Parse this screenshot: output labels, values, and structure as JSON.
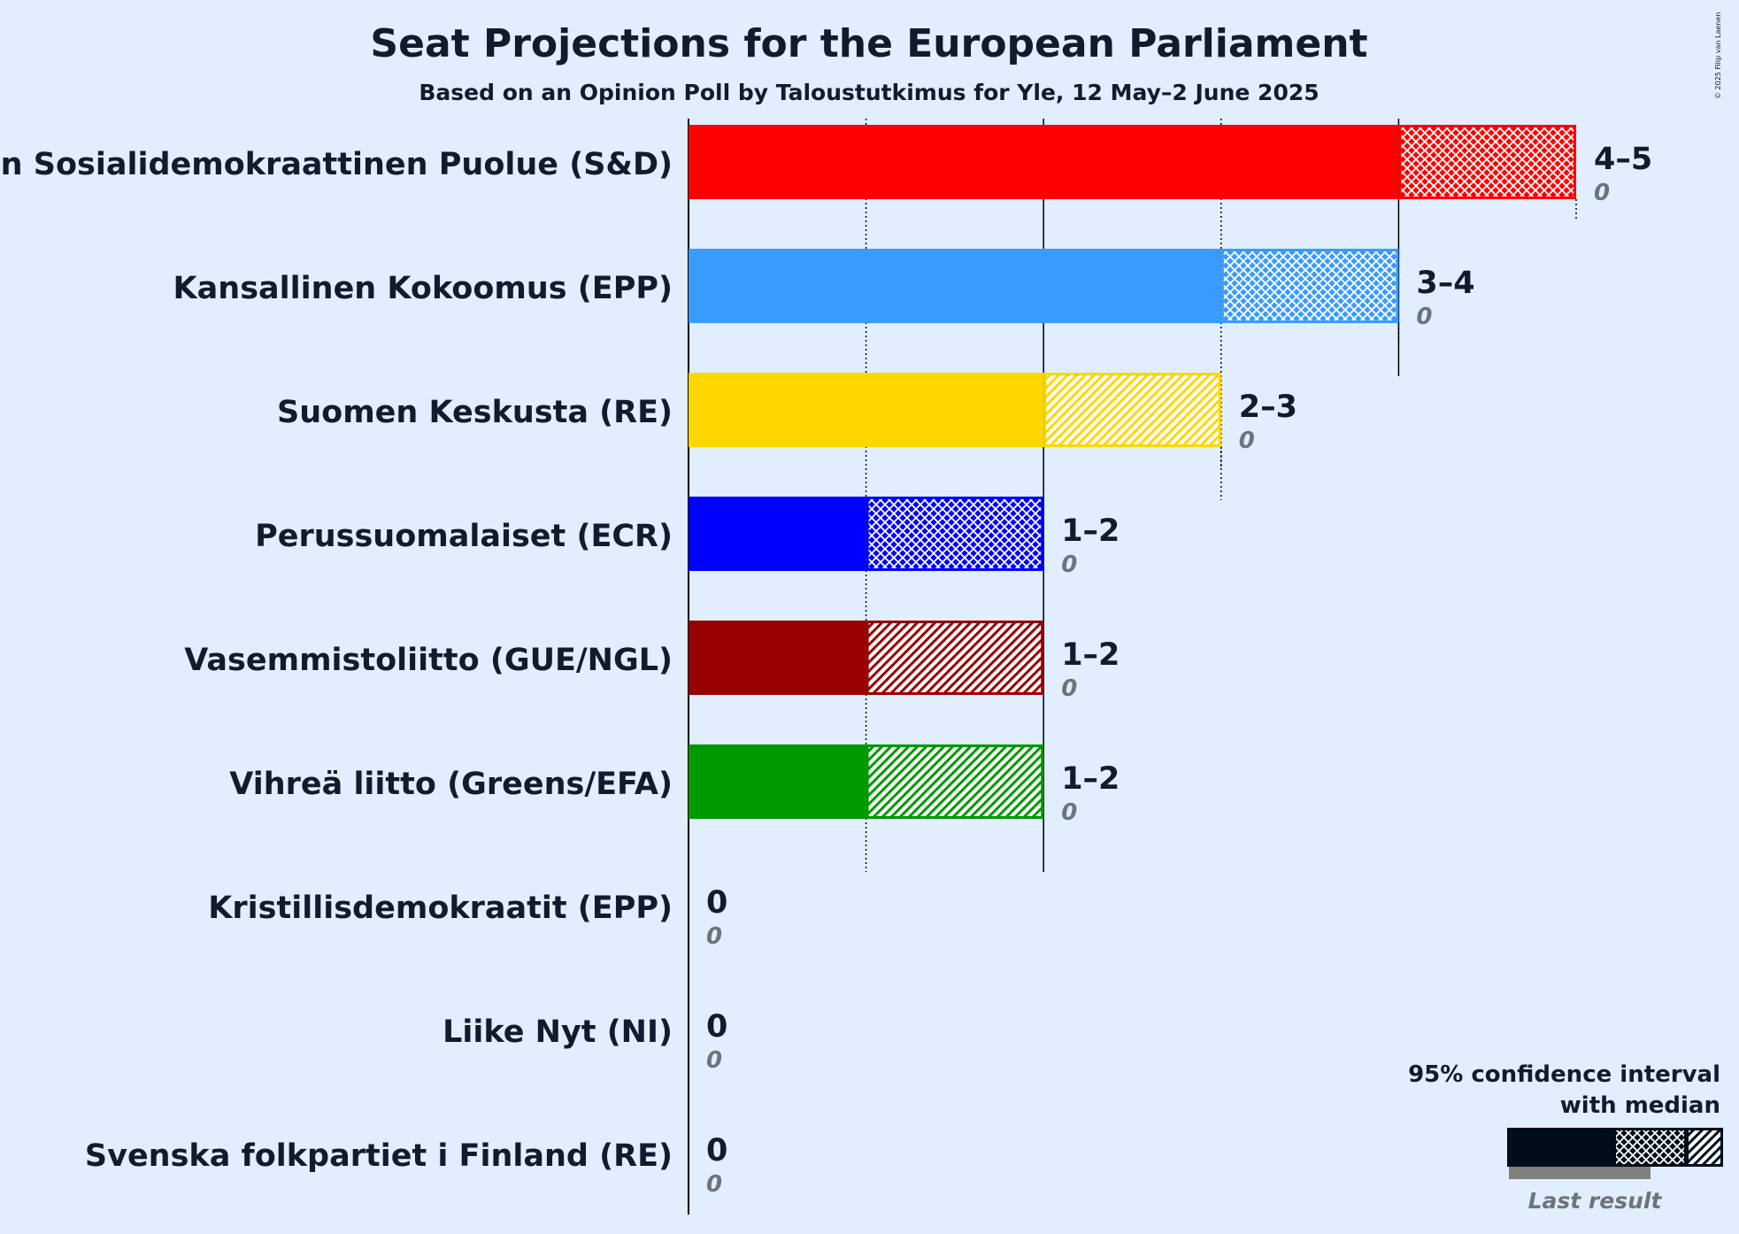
{
  "chart_data": {
    "type": "bar",
    "title": "Seat Projections for the European Parliament",
    "subtitle": "Based on an Opinion Poll by Taloustutkimus for Yle, 12 May–2 June 2025",
    "copyright": "© 2025 Filip van Laenen",
    "xlim": [
      0,
      5
    ],
    "median_gridlines": [
      1,
      3
    ],
    "solid_gridlines": [
      2,
      4
    ],
    "parties": [
      {
        "name": "Suomen Sosialidemokraattinen Puolue (S&D)",
        "color": "#ff0000",
        "low": 4,
        "median": 4,
        "high": 5,
        "range_label": "4–5",
        "last_result": "0",
        "pattern": "cross",
        "median_line": true
      },
      {
        "name": "Kansallinen Kokoomus (EPP)",
        "color": "#3a9bff",
        "low": 3,
        "median": 4,
        "high": 4,
        "range_label": "3–4",
        "last_result": "0",
        "pattern": "cross",
        "median_line": true
      },
      {
        "name": "Suomen Keskusta (RE)",
        "color": "#ffd700",
        "low": 2,
        "median": 2,
        "high": 3,
        "range_label": "2–3",
        "last_result": "0",
        "pattern": "diag",
        "median_line": true
      },
      {
        "name": "Perussuomalaiset (ECR)",
        "color": "#0000ff",
        "low": 1,
        "median": 2,
        "high": 2,
        "range_label": "1–2",
        "last_result": "0",
        "pattern": "cross",
        "median_line": false
      },
      {
        "name": "Vasemmistoliitto (GUE/NGL)",
        "color": "#990000",
        "low": 1,
        "median": 1,
        "high": 2,
        "range_label": "1–2",
        "last_result": "0",
        "pattern": "diag",
        "median_line": false
      },
      {
        "name": "Vihreä liitto (Greens/EFA)",
        "color": "#009900",
        "low": 1,
        "median": 1,
        "high": 2,
        "range_label": "1–2",
        "last_result": "0",
        "pattern": "diag",
        "median_line": true
      },
      {
        "name": "Kristillisdemokraatit (EPP)",
        "color": "#1f3f9f",
        "low": 0,
        "median": 0,
        "high": 0,
        "range_label": "0",
        "last_result": "0",
        "pattern": "none",
        "median_line": false
      },
      {
        "name": "Liike Nyt (NI)",
        "color": "#5a5a5a",
        "low": 0,
        "median": 0,
        "high": 0,
        "range_label": "0",
        "last_result": "0",
        "pattern": "none",
        "median_line": false
      },
      {
        "name": "Svenska folkpartiet i Finland (RE)",
        "color": "#ffdd00",
        "low": 0,
        "median": 0,
        "high": 0,
        "range_label": "0",
        "last_result": "0",
        "pattern": "none",
        "median_line": false
      }
    ],
    "legend": {
      "line1": "95% confidence interval",
      "line2": "with median",
      "last_result": "Last result",
      "color": "#000d1a",
      "last_color": "#808080"
    }
  }
}
